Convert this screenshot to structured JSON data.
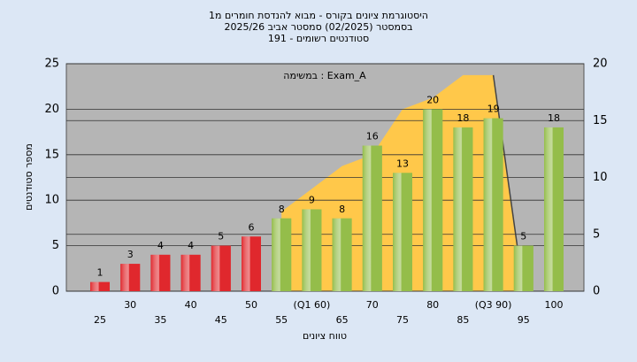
{
  "chart_data": {
    "type": "bar",
    "title": [
      "היסטוגרמת ציונים בקורס - מבוא להנדסת חומרים מ1",
      "בסמסטר  (02/2025)  סמסטר אביב 2025/26",
      "סטודנטים רשומים - 191"
    ],
    "annotation": "במשימה : Exam_A",
    "ylabel": "מספר סטודנטים",
    "xlabel": "טווח ציונים",
    "categories": [
      "25",
      "30",
      "35",
      "40",
      "45",
      "50",
      "55",
      "(Q1 60)",
      "65",
      "70",
      "75",
      "80",
      "85",
      "(Q3 90)",
      "95",
      "100"
    ],
    "values": [
      1,
      3,
      4,
      4,
      5,
      6,
      8,
      9,
      8,
      16,
      13,
      20,
      18,
      19,
      5,
      18
    ],
    "colors": [
      "#e0282d",
      "#e0282d",
      "#e0282d",
      "#e0282d",
      "#e0282d",
      "#e0282d",
      "#94bd4a",
      "#94bd4a",
      "#94bd4a",
      "#94bd4a",
      "#94bd4a",
      "#94bd4a",
      "#94bd4a",
      "#94bd4a",
      "#94bd4a",
      "#94bd4a"
    ],
    "ylim": [
      0,
      25
    ],
    "yticks": [
      0,
      5,
      10,
      15,
      20,
      25
    ],
    "y2lim": [
      0,
      20
    ],
    "y2ticks": [
      0,
      5,
      10,
      15,
      20
    ],
    "area": {
      "axis": "y2",
      "color": "#ffc84a",
      "values": [
        null,
        null,
        null,
        null,
        null,
        null,
        7,
        9,
        11,
        12,
        16,
        17,
        19,
        19,
        0,
        null
      ]
    },
    "grid": true
  }
}
